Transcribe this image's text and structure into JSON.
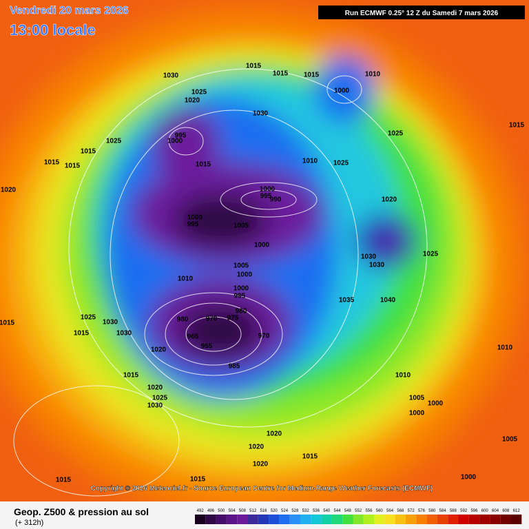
{
  "header": {
    "date": "Vendredi 20 mars 2026",
    "time": "13:00 locale",
    "run": "Run ECMWF 0.25° 12 Z du Samedi 7 mars 2026"
  },
  "copyright": "Copyright © 2026 Meteociel.fr - Source European Centre for Medium-Range Weather Forecasts (ECMWF)",
  "footer": {
    "title": "Geop. Z500 & pression au sol",
    "lead": "(+ 312h)"
  },
  "colorbar": {
    "values": [
      492,
      496,
      500,
      504,
      508,
      512,
      516,
      520,
      524,
      528,
      532,
      536,
      540,
      544,
      548,
      552,
      556,
      560,
      564,
      568,
      572,
      576,
      580,
      584,
      588,
      592,
      596,
      600,
      604,
      608,
      612
    ],
    "colors": [
      "#1a0020",
      "#2d0845",
      "#440d6a",
      "#5a1488",
      "#6c1a9c",
      "#3c2a9a",
      "#2238b8",
      "#1a50d8",
      "#1e6ef0",
      "#2a90f8",
      "#20b0f0",
      "#10c8d8",
      "#10d0a8",
      "#20d878",
      "#40e040",
      "#80e828",
      "#b0f020",
      "#e0f020",
      "#f8e020",
      "#f8c010",
      "#f8a008",
      "#f88000",
      "#f06000",
      "#e84000",
      "#e02000",
      "#d00000",
      "#b80000",
      "#a00000",
      "#880000",
      "#700000",
      "#580000"
    ]
  },
  "pressure_labels": [
    "1030",
    "1015",
    "1015",
    "1015",
    "1010",
    "1000",
    "1025",
    "1020",
    "1030",
    "995",
    "1000",
    "1025",
    "1015",
    "1015",
    "1015",
    "1015",
    "1010",
    "1025",
    "1025",
    "1015",
    "1020",
    "1000",
    "995",
    "990",
    "1000",
    "995",
    "1005",
    "1020",
    "1000",
    "1030",
    "1030",
    "1025",
    "1005",
    "1010",
    "1000",
    "1000",
    "995",
    "980",
    "975",
    "970",
    "980",
    "970",
    "965",
    "955",
    "985",
    "1035",
    "1040",
    "1025",
    "1030",
    "1015",
    "1030",
    "1020",
    "1015",
    "1020",
    "1025",
    "1030",
    "1010",
    "1005",
    "1000",
    "1000",
    "1020",
    "1020",
    "1015",
    "1020",
    "1015",
    "1015",
    "1000",
    "1005",
    "1015",
    "1010"
  ]
}
